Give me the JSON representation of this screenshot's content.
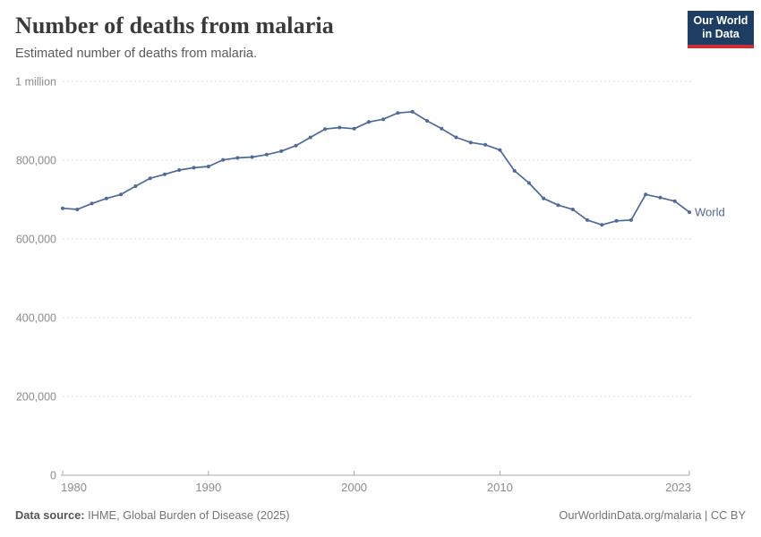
{
  "header": {
    "title": "Number of deaths from malaria",
    "subtitle": "Estimated number of deaths from malaria."
  },
  "logo": {
    "line1": "Our World",
    "line2": "in Data",
    "bg_color": "#1d3d63",
    "accent_color": "#cb2d3a",
    "text_color": "#ffffff"
  },
  "chart_data": {
    "type": "line",
    "title": "Number of deaths from malaria",
    "subtitle": "Estimated number of deaths from malaria.",
    "xlim": [
      1980,
      2023
    ],
    "ylim": [
      0,
      1000000
    ],
    "grid": "horizontal-dashed",
    "legend_position": "end-of-line-label",
    "x_ticks": [
      {
        "value": 1980,
        "label": "1980"
      },
      {
        "value": 1990,
        "label": "1990"
      },
      {
        "value": 2000,
        "label": "2000"
      },
      {
        "value": 2010,
        "label": "2010"
      },
      {
        "value": 2023,
        "label": "2023"
      }
    ],
    "y_ticks": [
      {
        "value": 0,
        "label": "0"
      },
      {
        "value": 200000,
        "label": "200,000"
      },
      {
        "value": 400000,
        "label": "400,000"
      },
      {
        "value": 600000,
        "label": "600,000"
      },
      {
        "value": 800000,
        "label": "800,000"
      },
      {
        "value": 1000000,
        "label": "1 million"
      }
    ],
    "series": [
      {
        "name": "World",
        "color": "#4c6a9c",
        "x": [
          1980,
          1981,
          1982,
          1983,
          1984,
          1985,
          1986,
          1987,
          1988,
          1989,
          1990,
          1991,
          1992,
          1993,
          1994,
          1995,
          1996,
          1997,
          1998,
          1999,
          2000,
          2001,
          2002,
          2003,
          2004,
          2005,
          2006,
          2007,
          2008,
          2009,
          2010,
          2011,
          2012,
          2013,
          2014,
          2015,
          2016,
          2017,
          2018,
          2019,
          2020,
          2021,
          2022,
          2023
        ],
        "values": [
          678000,
          675000,
          690000,
          703000,
          713000,
          734000,
          754000,
          764000,
          775000,
          781000,
          784000,
          801000,
          806000,
          808000,
          814000,
          823000,
          837000,
          858000,
          879000,
          883000,
          880000,
          897000,
          904000,
          920000,
          923000,
          900000,
          880000,
          858000,
          845000,
          839000,
          826000,
          773000,
          742000,
          703000,
          686000,
          675000,
          648000,
          636000,
          646000,
          648000,
          713000,
          705000,
          696000,
          668000
        ]
      }
    ]
  },
  "footer": {
    "source_label": "Data source:",
    "source_value": " IHME, Global Burden of Disease (2025)",
    "attribution": "OurWorldinData.org/malaria | CC BY"
  },
  "colors": {
    "line": "#4c6a9c",
    "grid": "#dcdcdc",
    "axis": "#a8a8a8",
    "tick_label": "#8c8c8c",
    "title": "#3a3a3a",
    "subtitle": "#5b5b5b"
  }
}
